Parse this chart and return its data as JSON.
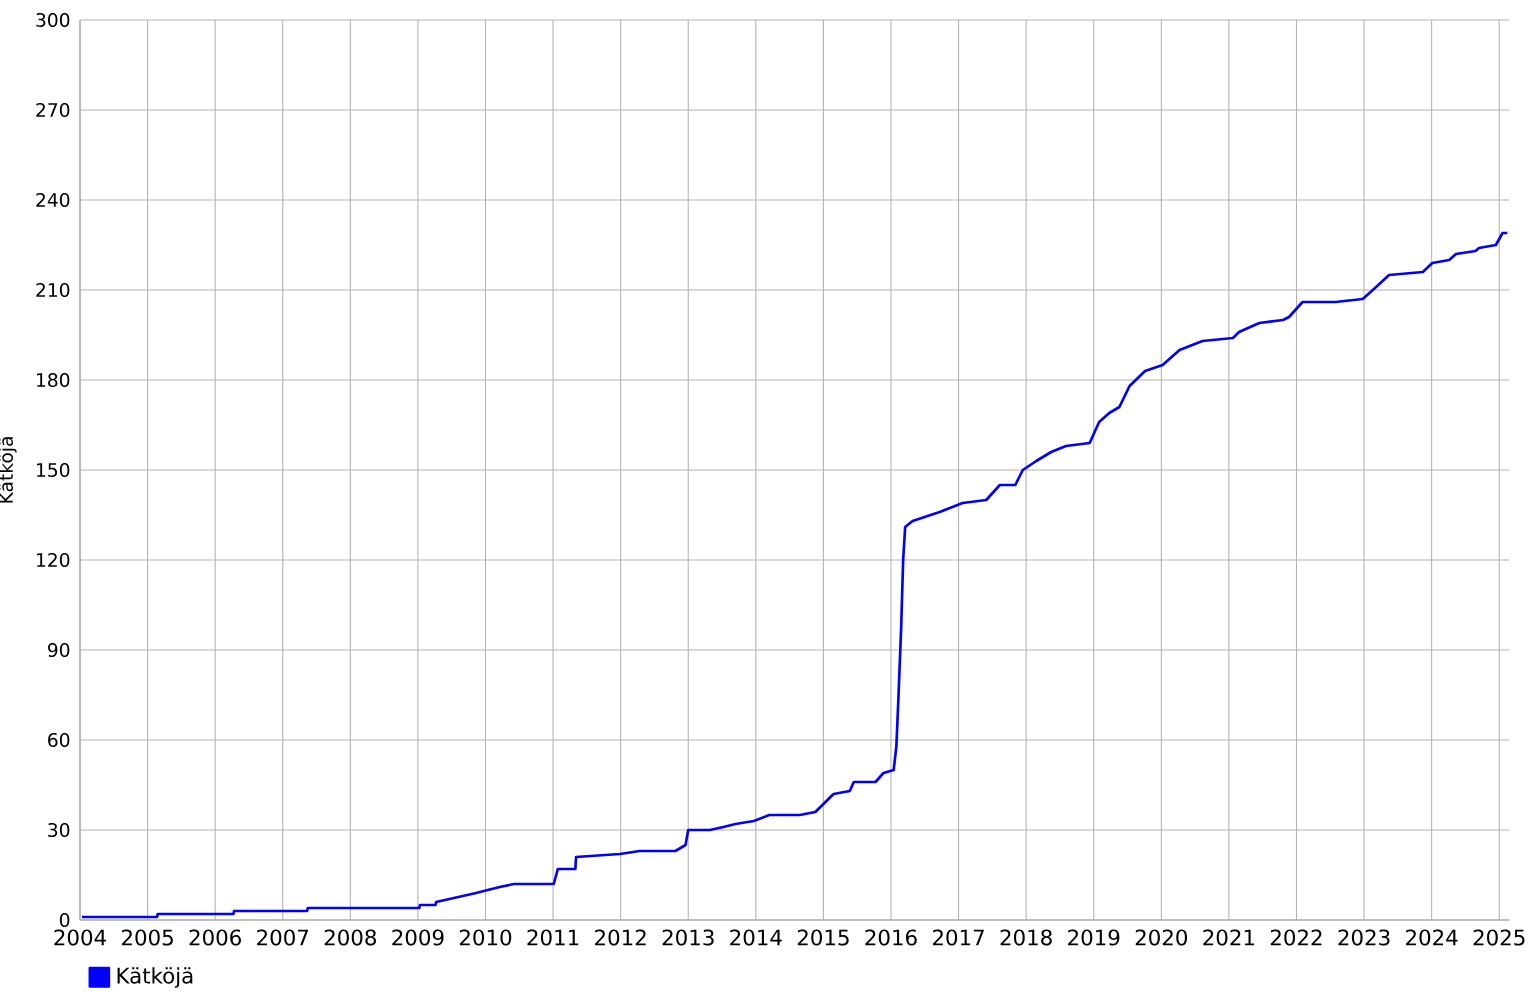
{
  "chart_data": {
    "type": "line",
    "ylabel": "Kätköjä",
    "x": [
      2004.03,
      2005.14,
      2005.15,
      2006.27,
      2006.28,
      2007.36,
      2007.37,
      2009.02,
      2009.03,
      2009.26,
      2009.27,
      2009.86,
      2010.21,
      2010.42,
      2011.01,
      2011.07,
      2011.33,
      2011.34,
      2011.99,
      2012.28,
      2012.81,
      2012.96,
      2013.0,
      2013.32,
      2013.52,
      2013.7,
      2013.97,
      2014.2,
      2014.65,
      2014.88,
      2015.15,
      2015.39,
      2015.45,
      2015.77,
      2015.89,
      2016.04,
      2016.08,
      2016.11,
      2016.15,
      2016.18,
      2016.21,
      2016.32,
      2016.72,
      2017.06,
      2017.41,
      2017.61,
      2017.84,
      2017.95,
      2018.15,
      2018.37,
      2018.59,
      2018.94,
      2019.08,
      2019.23,
      2019.38,
      2019.53,
      2019.76,
      2020.02,
      2020.27,
      2020.61,
      2021.06,
      2021.15,
      2021.45,
      2021.8,
      2021.89,
      2022.09,
      2022.58,
      2022.98,
      2023.13,
      2023.37,
      2023.87,
      2024.01,
      2024.26,
      2024.36,
      2024.65,
      2024.7,
      2024.95,
      2025.05,
      2025.12
    ],
    "series": [
      {
        "name": "Kätköjä",
        "color": "#0000ff",
        "values": [
          1,
          1,
          2,
          2,
          3,
          3,
          4,
          4,
          5,
          5,
          6,
          9,
          11,
          12,
          12,
          17,
          17,
          21,
          22,
          23,
          23,
          25,
          30,
          30,
          31,
          32,
          33,
          35,
          35,
          36,
          42,
          43,
          46,
          46,
          49,
          50,
          58,
          74,
          97,
          120,
          131,
          133,
          136,
          139,
          140,
          145,
          145,
          150,
          153,
          156,
          158,
          159,
          166,
          169,
          171,
          178,
          183,
          185,
          190,
          193,
          194,
          196,
          199,
          200,
          201,
          206,
          206,
          207,
          210,
          215,
          216,
          219,
          220,
          222,
          223,
          224,
          225,
          229,
          229
        ]
      }
    ],
    "xlim": [
      2004,
      2025.15
    ],
    "ylim": [
      0,
      300
    ],
    "xticks": [
      2004,
      2005,
      2006,
      2007,
      2008,
      2009,
      2010,
      2011,
      2012,
      2013,
      2014,
      2015,
      2016,
      2017,
      2018,
      2019,
      2020,
      2021,
      2022,
      2023,
      2024,
      2025
    ],
    "yticks": [
      0,
      30,
      60,
      90,
      120,
      150,
      180,
      210,
      240,
      270,
      300
    ],
    "grid": true,
    "legend": "bottom left",
    "marker": "none",
    "line_style": "solid"
  }
}
